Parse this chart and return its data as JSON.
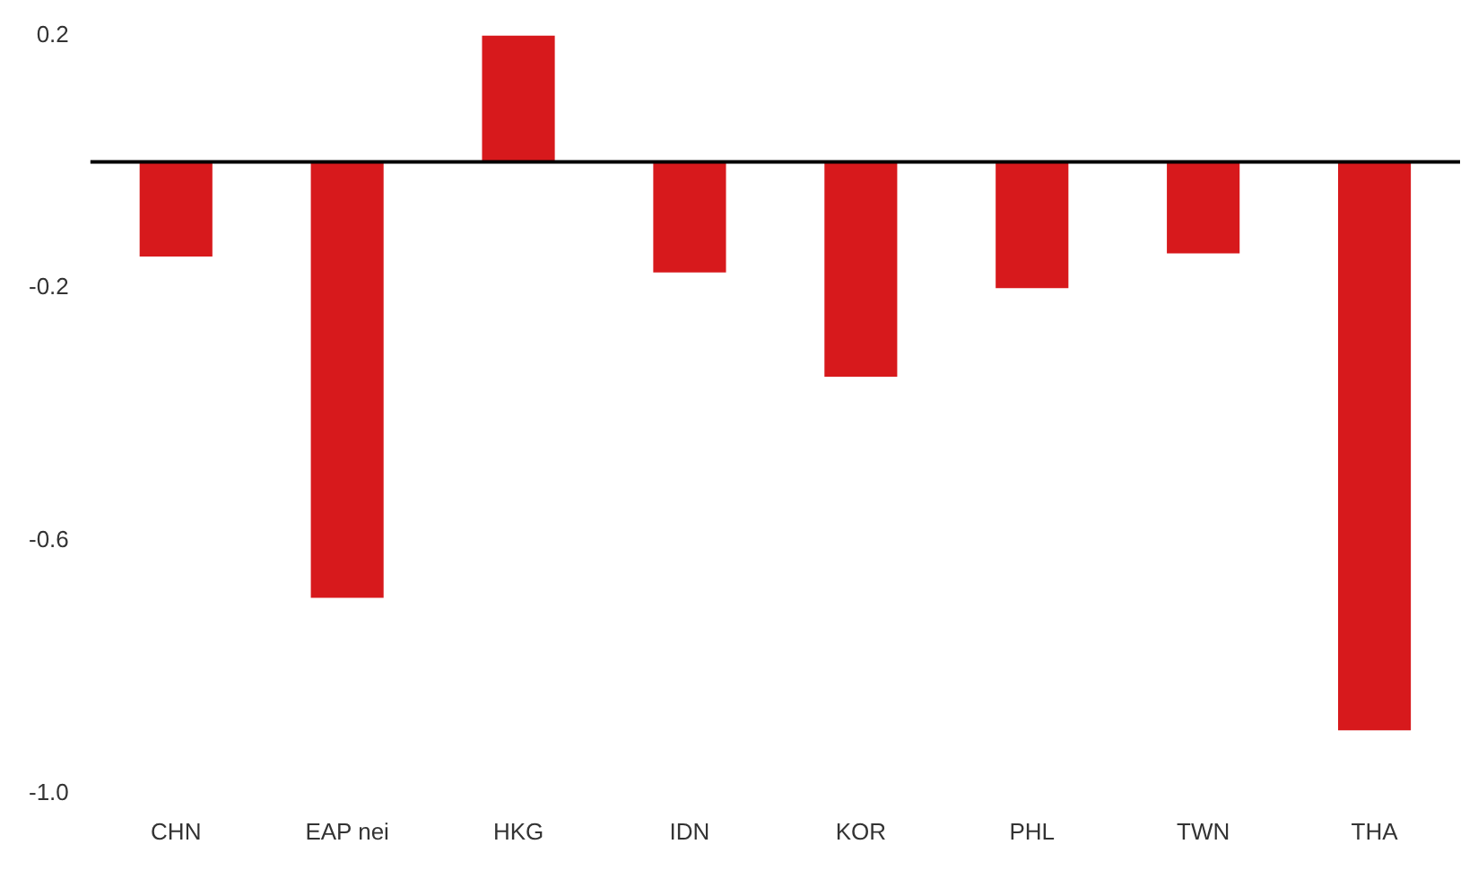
{
  "chart_data": {
    "type": "bar",
    "categories": [
      "CHN",
      "EAP nei",
      "HKG",
      "IDN",
      "KOR",
      "PHL",
      "TWN",
      "THA"
    ],
    "values": [
      -0.15,
      -0.69,
      0.2,
      -0.175,
      -0.34,
      -0.2,
      -0.145,
      -0.9
    ],
    "color": "#d7191c",
    "ylim": [
      -1.0,
      0.2
    ],
    "yticks": [
      {
        "value": 0.2,
        "label": "0.2"
      },
      {
        "value": -0.2,
        "label": "-0.2"
      },
      {
        "value": -0.6,
        "label": "-0.6"
      },
      {
        "value": -1.0,
        "label": "-1.0"
      }
    ],
    "ref_lines": [
      {
        "axis": "y",
        "value": 0,
        "color": "#000000"
      }
    ],
    "grid": false,
    "legend": false
  }
}
